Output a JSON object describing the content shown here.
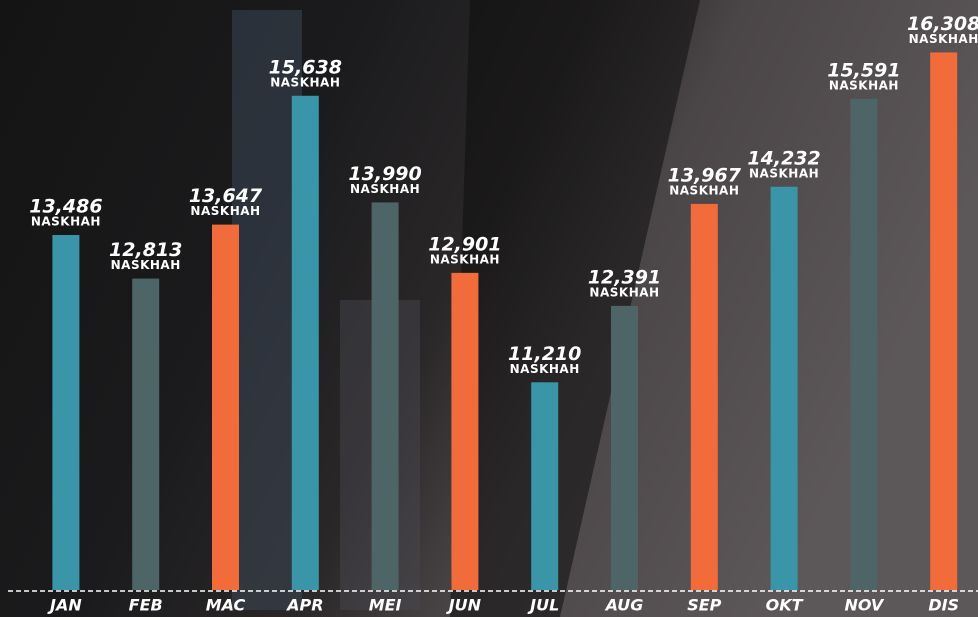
{
  "chart_data": {
    "type": "bar",
    "categories": [
      "JAN",
      "FEB",
      "MAC",
      "APR",
      "MEI",
      "JUN",
      "JUL",
      "AUG",
      "SEP",
      "OKT",
      "NOV",
      "DIS"
    ],
    "values": [
      13486,
      12813,
      13647,
      15638,
      13990,
      12901,
      11210,
      12391,
      13967,
      14232,
      15591,
      16308
    ],
    "value_labels": [
      "13,486",
      "12,813",
      "13,647",
      "15,638",
      "13,990",
      "12,901",
      "11,210",
      "12,391",
      "13,967",
      "14,232",
      "15,591",
      "16,308"
    ],
    "unit_label": "NASKHAH",
    "colors": [
      "#3b95a8",
      "#4e6567",
      "#f26b3a",
      "#3b95a8",
      "#4e6567",
      "#f26b3a",
      "#3b95a8",
      "#4e6567",
      "#f26b3a",
      "#3b95a8",
      "#4e6567",
      "#f26b3a"
    ],
    "ylim": [
      8000,
      16500
    ]
  }
}
